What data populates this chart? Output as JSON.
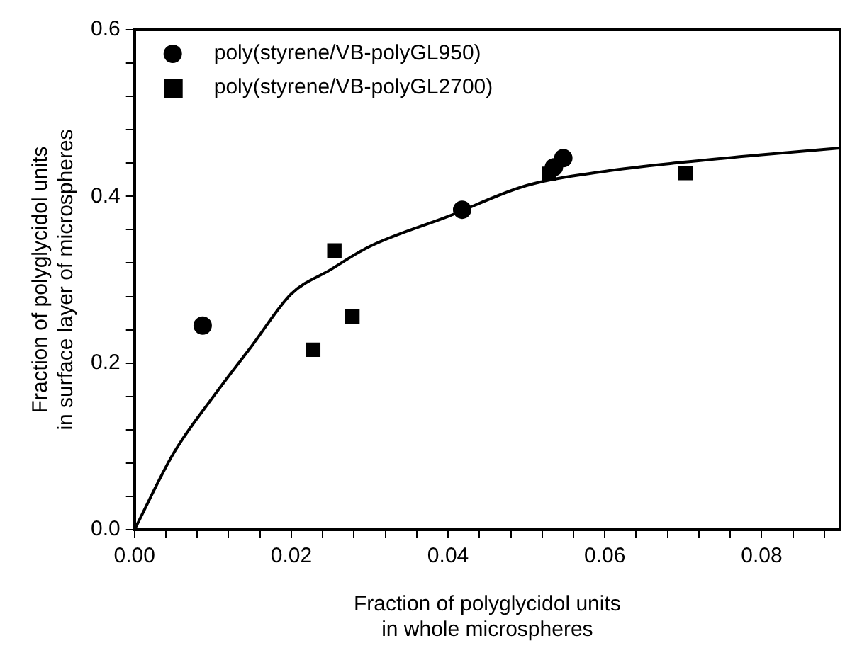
{
  "chart_data": {
    "type": "scatter",
    "xlabel": "Fraction of polyglycidol units\nin whole microspheres",
    "ylabel": "Fraction of polyglycidol units\nin surface layer of microspheres",
    "xlim": [
      0,
      0.09
    ],
    "xticks": [
      {
        "value": 0,
        "label": "0.00"
      },
      {
        "value": 0.004,
        "label": null
      },
      {
        "value": 0.008,
        "label": null
      },
      {
        "value": 0.012,
        "label": null
      },
      {
        "value": 0.016,
        "label": null
      },
      {
        "value": 0.02,
        "label": "0.02"
      },
      {
        "value": 0.024,
        "label": null
      },
      {
        "value": 0.028,
        "label": null
      },
      {
        "value": 0.032,
        "label": null
      },
      {
        "value": 0.036,
        "label": null
      },
      {
        "value": 0.04,
        "label": "0.04"
      },
      {
        "value": 0.044,
        "label": null
      },
      {
        "value": 0.048,
        "label": null
      },
      {
        "value": 0.052,
        "label": null
      },
      {
        "value": 0.056,
        "label": null
      },
      {
        "value": 0.06,
        "label": "0.06"
      },
      {
        "value": 0.064,
        "label": null
      },
      {
        "value": 0.068,
        "label": null
      },
      {
        "value": 0.072,
        "label": null
      },
      {
        "value": 0.076,
        "label": null
      },
      {
        "value": 0.08,
        "label": "0.08"
      },
      {
        "value": 0.084,
        "label": null
      },
      {
        "value": 0.088,
        "label": null
      }
    ],
    "ylim": [
      0,
      0.6
    ],
    "yticks": [
      {
        "value": 0,
        "label": "0.0"
      },
      {
        "value": 0.04,
        "label": null
      },
      {
        "value": 0.08,
        "label": null
      },
      {
        "value": 0.12,
        "label": null
      },
      {
        "value": 0.16,
        "label": null
      },
      {
        "value": 0.2,
        "label": "0.2"
      },
      {
        "value": 0.24,
        "label": null
      },
      {
        "value": 0.28,
        "label": null
      },
      {
        "value": 0.32,
        "label": null
      },
      {
        "value": 0.36,
        "label": null
      },
      {
        "value": 0.4,
        "label": "0.4"
      },
      {
        "value": 0.44,
        "label": null
      },
      {
        "value": 0.48,
        "label": null
      },
      {
        "value": 0.52,
        "label": null
      },
      {
        "value": 0.56,
        "label": null
      },
      {
        "value": 0.6,
        "label": "0.6"
      }
    ],
    "grid": false,
    "legend": "top left",
    "series": [
      {
        "name": "poly(styrene/VB-polyGL950)",
        "type": "scatter",
        "marker": "circle",
        "color": "#000000",
        "x": [
          0.0087,
          0.0418,
          0.0535,
          0.0547
        ],
        "values": [
          0.245,
          0.384,
          0.435,
          0.446
        ]
      },
      {
        "name": "poly(styrene/VB-polyGL2700)",
        "type": "scatter",
        "marker": "square",
        "color": "#000000",
        "x": [
          0.0228,
          0.0255,
          0.0278,
          0.0529,
          0.0703
        ],
        "values": [
          0.216,
          0.335,
          0.256,
          0.427,
          0.428
        ]
      },
      {
        "type": "line",
        "marker": "none",
        "line_style": "solid",
        "color": "#000000",
        "x": [
          0,
          0.005,
          0.01,
          0.015,
          0.02,
          0.025,
          0.03,
          0.04,
          0.05,
          0.06,
          0.07,
          0.08,
          0.09
        ],
        "values": [
          0,
          0.092,
          0.159,
          0.221,
          0.283,
          0.312,
          0.34,
          0.376,
          0.413,
          0.43,
          0.441,
          0.45,
          0.458
        ]
      }
    ]
  }
}
